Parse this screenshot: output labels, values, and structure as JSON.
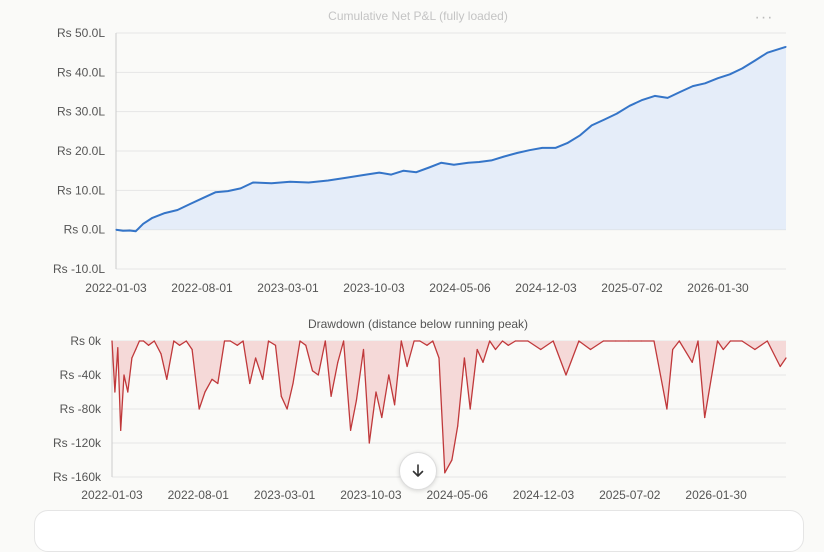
{
  "menu_label": "···",
  "chart_data": [
    {
      "type": "area",
      "title": "Cumulative Net P&L (fully loaded)",
      "ylim": [
        -10,
        50
      ],
      "yticks": [
        50,
        40,
        30,
        20,
        10,
        0,
        -10
      ],
      "ytick_labels": [
        "Rs 50.0L",
        "Rs 40.0L",
        "Rs 30.0L",
        "Rs 20.0L",
        "Rs 10.0L",
        "Rs 0.0L",
        "Rs -10.0L"
      ],
      "xtick_labels": [
        "2022-01-03",
        "2022-08-01",
        "2023-03-01",
        "2023-10-03",
        "2024-05-06",
        "2024-12-03",
        "2025-07-02",
        "2026-01-30"
      ],
      "xlim": [
        "2022-01-03",
        "2026-06-15"
      ],
      "grid": true,
      "color": "#3575c8",
      "fill": "#e5edf9",
      "x": [
        "2022-01-03",
        "2022-01-20",
        "2022-02-05",
        "2022-02-20",
        "2022-03-10",
        "2022-04-01",
        "2022-05-01",
        "2022-06-01",
        "2022-07-01",
        "2022-08-01",
        "2022-09-01",
        "2022-10-01",
        "2022-11-01",
        "2022-12-01",
        "2023-01-15",
        "2023-03-01",
        "2023-04-15",
        "2023-06-01",
        "2023-07-15",
        "2023-09-01",
        "2023-10-03",
        "2023-11-01",
        "2023-12-01",
        "2024-01-01",
        "2024-02-01",
        "2024-03-01",
        "2024-04-01",
        "2024-05-06",
        "2024-06-01",
        "2024-07-01",
        "2024-08-01",
        "2024-09-01",
        "2024-10-01",
        "2024-11-01",
        "2024-12-03",
        "2025-01-01",
        "2025-02-01",
        "2025-03-01",
        "2025-04-01",
        "2025-05-01",
        "2025-06-01",
        "2025-07-02",
        "2025-08-01",
        "2025-09-01",
        "2025-10-01",
        "2025-11-01",
        "2025-12-01",
        "2026-01-01",
        "2026-01-30",
        "2026-03-01",
        "2026-04-01",
        "2026-05-01",
        "2026-06-15"
      ],
      "values": [
        0.0,
        -0.3,
        -0.2,
        -0.4,
        1.5,
        3.0,
        4.2,
        5.0,
        6.5,
        8.0,
        9.5,
        9.8,
        10.5,
        12.0,
        11.8,
        12.2,
        12.0,
        12.5,
        13.2,
        14.0,
        14.5,
        14.0,
        15.0,
        14.6,
        15.8,
        17.0,
        16.5,
        17.0,
        17.2,
        17.6,
        18.6,
        19.5,
        20.2,
        20.8,
        20.8,
        22.0,
        24.0,
        26.5,
        28.0,
        29.5,
        31.5,
        33.0,
        34.0,
        33.5,
        35.0,
        36.5,
        37.2,
        38.5,
        39.5,
        41.0,
        43.0,
        45.0,
        46.5
      ]
    },
    {
      "type": "area",
      "title": "Drawdown (distance below running peak)",
      "ylim": [
        -160,
        0
      ],
      "yticks": [
        0,
        -40,
        -80,
        -120,
        -160
      ],
      "ytick_labels": [
        "Rs 0k",
        "Rs -40k",
        "Rs -80k",
        "Rs -120k",
        "Rs -160k"
      ],
      "xtick_labels": [
        "2022-01-03",
        "2022-08-01",
        "2023-03-01",
        "2023-10-03",
        "2024-05-06",
        "2024-12-03",
        "2025-07-02",
        "2026-01-30"
      ],
      "xlim": [
        "2022-01-03",
        "2026-06-15"
      ],
      "grid": true,
      "color": "#c0393b",
      "fill": "#f5d9d8",
      "x": [
        "2022-01-03",
        "2022-01-10",
        "2022-01-17",
        "2022-01-24",
        "2022-02-01",
        "2022-02-10",
        "2022-02-20",
        "2022-03-01",
        "2022-03-10",
        "2022-03-20",
        "2022-04-01",
        "2022-04-15",
        "2022-05-01",
        "2022-05-15",
        "2022-06-01",
        "2022-06-15",
        "2022-07-01",
        "2022-07-15",
        "2022-08-01",
        "2022-08-15",
        "2022-09-01",
        "2022-09-15",
        "2022-10-01",
        "2022-10-15",
        "2022-11-01",
        "2022-11-15",
        "2022-12-01",
        "2022-12-15",
        "2023-01-01",
        "2023-01-15",
        "2023-02-01",
        "2023-02-15",
        "2023-03-01",
        "2023-03-15",
        "2023-04-01",
        "2023-04-15",
        "2023-05-01",
        "2023-05-15",
        "2023-06-01",
        "2023-06-15",
        "2023-07-01",
        "2023-07-15",
        "2023-08-01",
        "2023-08-15",
        "2023-09-01",
        "2023-09-15",
        "2023-10-01",
        "2023-10-15",
        "2023-11-01",
        "2023-11-15",
        "2023-12-01",
        "2023-12-15",
        "2024-01-01",
        "2024-01-15",
        "2024-02-01",
        "2024-02-15",
        "2024-03-01",
        "2024-03-15",
        "2024-04-01",
        "2024-04-15",
        "2024-05-01",
        "2024-05-15",
        "2024-06-01",
        "2024-06-15",
        "2024-07-01",
        "2024-07-15",
        "2024-08-01",
        "2024-08-15",
        "2024-09-01",
        "2024-10-01",
        "2024-11-01",
        "2024-12-01",
        "2025-01-01",
        "2025-02-01",
        "2025-03-01",
        "2025-04-01",
        "2025-05-01",
        "2025-06-01",
        "2025-07-01",
        "2025-08-01",
        "2025-09-01",
        "2025-09-15",
        "2025-10-01",
        "2025-11-01",
        "2025-11-15",
        "2025-12-01",
        "2026-01-01",
        "2026-01-15",
        "2026-02-01",
        "2026-03-01",
        "2026-04-01",
        "2026-05-01",
        "2026-06-01",
        "2026-06-15"
      ],
      "values": [
        0,
        -60,
        -8,
        -105,
        -40,
        -60,
        -20,
        -10,
        0,
        0,
        -5,
        0,
        -15,
        -45,
        0,
        -5,
        0,
        -10,
        -80,
        -60,
        -45,
        -50,
        0,
        0,
        -5,
        0,
        -50,
        -20,
        -45,
        0,
        -5,
        -65,
        -80,
        -50,
        0,
        -5,
        -35,
        -40,
        0,
        -65,
        -25,
        0,
        -105,
        -70,
        -10,
        -120,
        -60,
        -90,
        -40,
        -75,
        0,
        -30,
        0,
        0,
        -5,
        0,
        -20,
        -155,
        -140,
        -100,
        -20,
        -80,
        -10,
        -25,
        0,
        -10,
        0,
        -5,
        0,
        0,
        -10,
        0,
        -40,
        0,
        -10,
        0,
        0,
        0,
        0,
        0,
        -80,
        -10,
        0,
        -25,
        0,
        -90,
        0,
        -10,
        0,
        0,
        -10,
        0,
        -30,
        -20
      ]
    }
  ]
}
